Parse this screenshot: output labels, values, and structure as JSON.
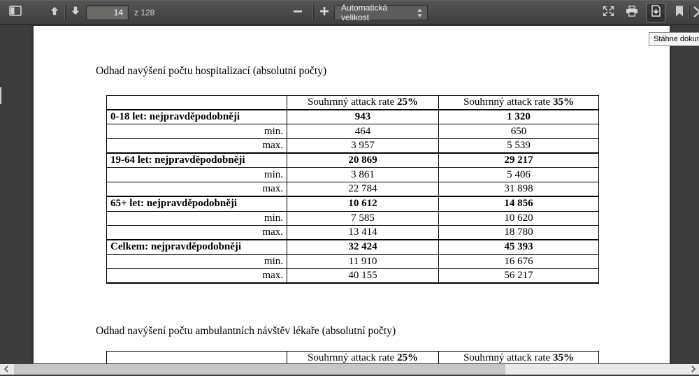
{
  "toolbar": {
    "page_input_value": "14",
    "page_count_label": "z 128",
    "zoom_select_value": "Automatická velikost",
    "download_tooltip": "Stáhne dokument"
  },
  "document": {
    "heading_hospitalizations": "Odhad navýšení počtu hospitalizací (absolutní počty)",
    "heading_ambulatory": "Odhad navýšení počtu ambulantních návštěv lékaře (absolutní počty)",
    "col_header_prefix": "Souhrnný attack rate",
    "col25_pct": "25%",
    "col35_pct": "35%",
    "table1_rows": [
      {
        "label": "0-18 let: nejpravděpodobněji",
        "bold": true,
        "v25": "943",
        "v35": "1 320"
      },
      {
        "label": "min.",
        "bold": false,
        "v25": "464",
        "v35": "650"
      },
      {
        "label": "max.",
        "bold": false,
        "v25": "3 957",
        "v35": "5 539"
      },
      {
        "label": "19-64 let: nejpravděpodobněji",
        "bold": true,
        "v25": "20 869",
        "v35": "29 217"
      },
      {
        "label": "min.",
        "bold": false,
        "v25": "3 861",
        "v35": "5 406"
      },
      {
        "label": "max.",
        "bold": false,
        "v25": "22 784",
        "v35": "31 898"
      },
      {
        "label": "65+ let: nejpravděpodobněji",
        "bold": true,
        "v25": "10 612",
        "v35": "14 856"
      },
      {
        "label": "min.",
        "bold": false,
        "v25": "7 585",
        "v35": "10 620"
      },
      {
        "label": "max.",
        "bold": false,
        "v25": "13 414",
        "v35": "18 780"
      },
      {
        "label": "Celkem: nejpravděpodobněji",
        "bold": true,
        "v25": "32 424",
        "v35": "45 393"
      },
      {
        "label": "min.",
        "bold": false,
        "v25": "11 910",
        "v35": "16 676"
      },
      {
        "label": "max.",
        "bold": false,
        "v25": "40 155",
        "v35": "56 217"
      }
    ]
  },
  "colors": {
    "toolbar_bg": "#4a4a4a",
    "viewer_bg": "#3d3d3d",
    "page_bg": "#ffffff",
    "icon": "#d6d6d6",
    "scroll_track": "#e9e9e9",
    "scroll_thumb": "#c6c6c6"
  }
}
